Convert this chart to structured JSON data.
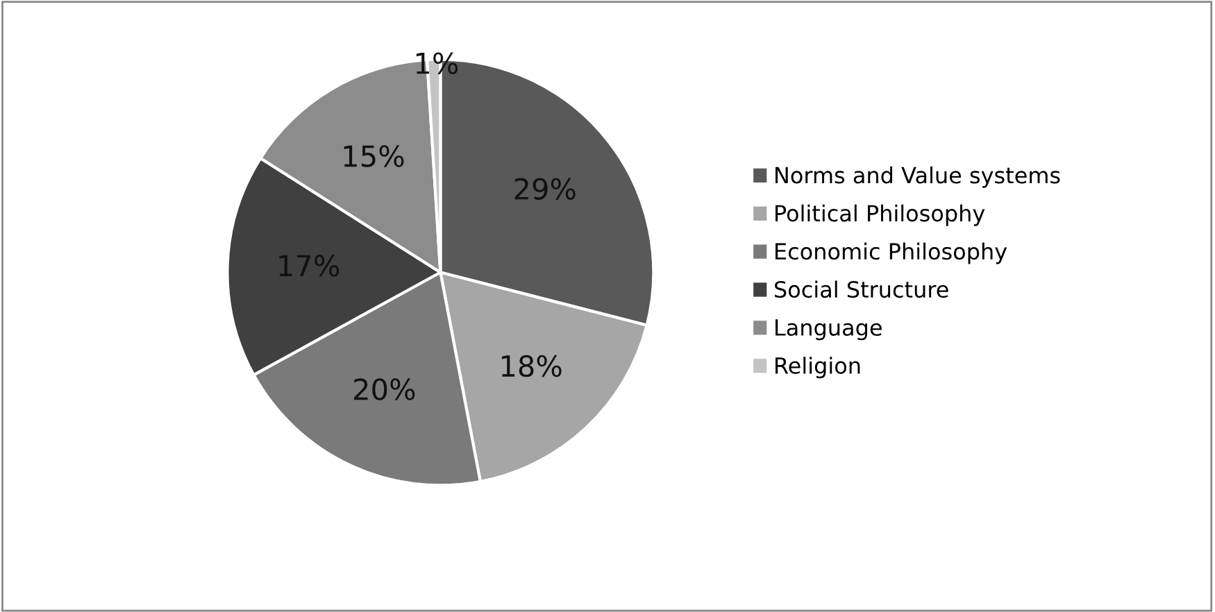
{
  "chart_data": {
    "type": "pie",
    "categories": [
      "Norms and Value systems",
      "Political Philosophy",
      "Economic Philosophy",
      "Social Structure",
      "Language",
      "Religion"
    ],
    "values": [
      29,
      18,
      20,
      17,
      15,
      1
    ],
    "colors": [
      "#595959",
      "#a6a6a6",
      "#7a7a7a",
      "#404040",
      "#8c8c8c",
      "#c4c4c4"
    ],
    "value_labels": [
      "29%",
      "18%",
      "20%",
      "17%",
      "15%",
      "1%"
    ],
    "legend": "right"
  }
}
